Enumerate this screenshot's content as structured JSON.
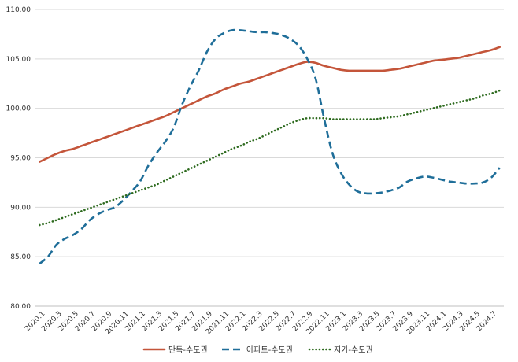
{
  "chart_data": {
    "type": "line",
    "title": "",
    "xlabel": "",
    "ylabel": "",
    "ylim": [
      80,
      110
    ],
    "yticks": [
      "80.00",
      "85.00",
      "90.00",
      "95.00",
      "100.00",
      "105.00",
      "110.00"
    ],
    "grid": "horizontal",
    "legend_position": "bottom",
    "x": [
      "2020.1",
      "2020.2",
      "2020.3",
      "2020.4",
      "2020.5",
      "2020.6",
      "2020.7",
      "2020.8",
      "2020.9",
      "2020.10",
      "2020.11",
      "2020.12",
      "2021.1",
      "2021.2",
      "2021.3",
      "2021.4",
      "2021.5",
      "2021.6",
      "2021.7",
      "2021.8",
      "2021.9",
      "2021.10",
      "2021.11",
      "2021.12",
      "2022.1",
      "2022.2",
      "2022.3",
      "2022.4",
      "2022.5",
      "2022.6",
      "2022.7",
      "2022.8",
      "2022.9",
      "2022.10",
      "2022.11",
      "2022.12",
      "2023.1",
      "2023.2",
      "2023.3",
      "2023.4",
      "2023.5",
      "2023.6",
      "2023.7",
      "2023.8",
      "2023.9",
      "2023.10",
      "2023.11",
      "2023.12",
      "2024.1",
      "2024.2",
      "2024.3",
      "2024.4",
      "2024.5",
      "2024.6",
      "2024.7",
      "2024.8"
    ],
    "x_tick_labels": [
      "2020.1",
      "2020.3",
      "2020.5",
      "2020.7",
      "2020.9",
      "2020.11",
      "2021.1",
      "2021.3",
      "2021.5",
      "2021.7",
      "2021.9",
      "2021.11",
      "2022.1",
      "2022.3",
      "2022.5",
      "2022.7",
      "2022.9",
      "2022.11",
      "2023.1",
      "2023.3",
      "2023.5",
      "2023.7",
      "2023.9",
      "2023.11",
      "2024.1",
      "2024.3",
      "2024.5",
      "2024.7"
    ],
    "series": [
      {
        "name": "단독-수도권",
        "color": "#C4553A",
        "style": "solid",
        "values": [
          94.6,
          95.0,
          95.4,
          95.7,
          95.9,
          96.2,
          96.5,
          96.8,
          97.1,
          97.4,
          97.7,
          98.0,
          98.3,
          98.6,
          98.9,
          99.2,
          99.6,
          100.0,
          100.4,
          100.8,
          101.2,
          101.5,
          101.9,
          102.2,
          102.5,
          102.7,
          103.0,
          103.3,
          103.6,
          103.9,
          104.2,
          104.5,
          104.7,
          104.6,
          104.3,
          104.1,
          103.9,
          103.8,
          103.8,
          103.8,
          103.8,
          103.8,
          103.9,
          104.0,
          104.2,
          104.4,
          104.6,
          104.8,
          104.9,
          105.0,
          105.1,
          105.3,
          105.5,
          105.7,
          105.9,
          106.2
        ]
      },
      {
        "name": "아파트-수도권",
        "color": "#1F6E99",
        "style": "dashed",
        "values": [
          84.3,
          85.0,
          86.2,
          86.8,
          87.2,
          87.8,
          88.7,
          89.3,
          89.7,
          90.0,
          90.7,
          91.6,
          92.6,
          94.2,
          95.5,
          96.6,
          98.0,
          100.3,
          102.2,
          103.8,
          105.7,
          107.0,
          107.6,
          107.9,
          107.9,
          107.8,
          107.7,
          107.7,
          107.6,
          107.4,
          107.0,
          106.3,
          105.0,
          103.0,
          99.0,
          95.5,
          93.5,
          92.3,
          91.6,
          91.4,
          91.4,
          91.5,
          91.7,
          92.0,
          92.6,
          92.9,
          93.1,
          93.0,
          92.8,
          92.6,
          92.5,
          92.4,
          92.4,
          92.5,
          93.0,
          94.0
        ]
      },
      {
        "name": "지가-수도권",
        "color": "#2D6A1E",
        "style": "dotted",
        "values": [
          88.2,
          88.4,
          88.7,
          89.0,
          89.3,
          89.6,
          89.9,
          90.2,
          90.5,
          90.8,
          91.1,
          91.4,
          91.7,
          92.0,
          92.3,
          92.7,
          93.1,
          93.5,
          93.9,
          94.3,
          94.7,
          95.1,
          95.5,
          95.9,
          96.2,
          96.6,
          96.9,
          97.3,
          97.7,
          98.1,
          98.5,
          98.8,
          99.0,
          99.0,
          99.0,
          98.9,
          98.9,
          98.9,
          98.9,
          98.9,
          98.9,
          99.0,
          99.1,
          99.2,
          99.4,
          99.6,
          99.8,
          100.0,
          100.2,
          100.4,
          100.6,
          100.8,
          101.0,
          101.3,
          101.5,
          101.8
        ]
      }
    ]
  }
}
